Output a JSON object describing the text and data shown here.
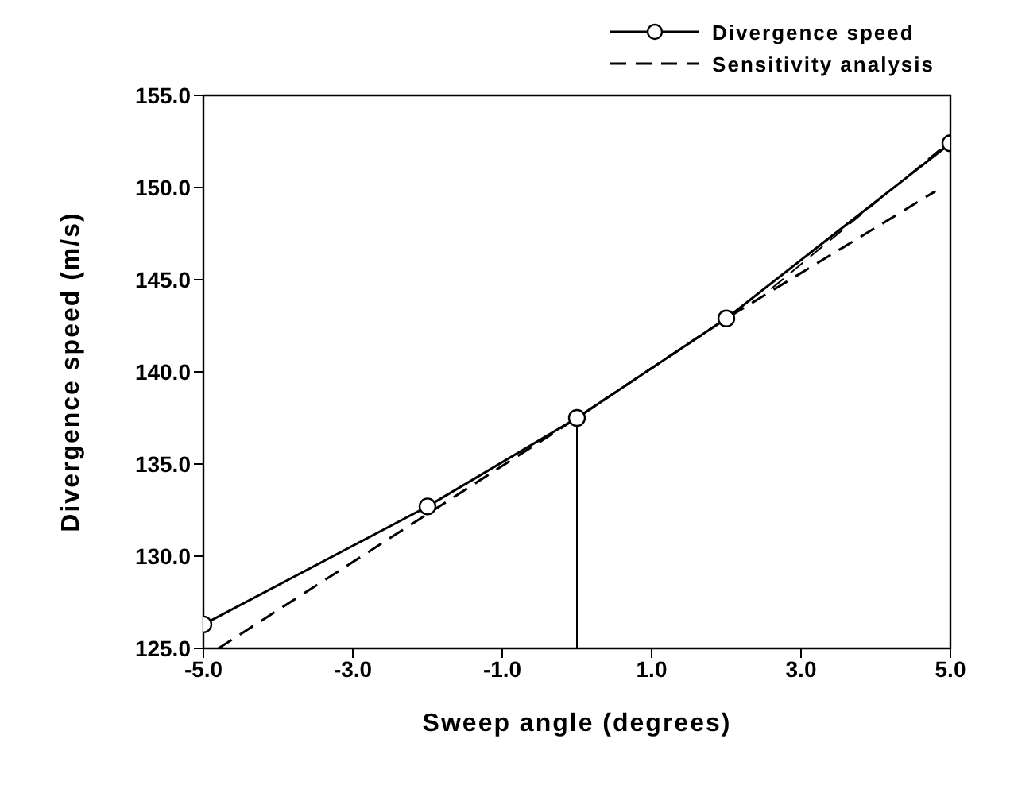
{
  "chart_data": {
    "type": "line",
    "xlabel": "Sweep angle  (degrees)",
    "ylabel": "Divergence speed  (m/s)",
    "xlim": [
      -5,
      5
    ],
    "ylim": [
      125,
      155
    ],
    "xticks": [
      {
        "value": -5,
        "label": "-5.0"
      },
      {
        "value": -3,
        "label": "-3.0"
      },
      {
        "value": -1,
        "label": "-1.0"
      },
      {
        "value": 1,
        "label": "1.0"
      },
      {
        "value": 3,
        "label": "3.0"
      },
      {
        "value": 5,
        "label": "5.0"
      }
    ],
    "yticks": [
      {
        "value": 125,
        "label": "125.0"
      },
      {
        "value": 130,
        "label": "130.0"
      },
      {
        "value": 135,
        "label": "135.0"
      },
      {
        "value": 140,
        "label": "140.0"
      },
      {
        "value": 145,
        "label": "145.0"
      },
      {
        "value": 150,
        "label": "150.0"
      },
      {
        "value": 155,
        "label": "155.0"
      }
    ],
    "grid": false,
    "legend": "top right",
    "series": [
      {
        "name": "Divergence speed",
        "color": "#000000",
        "marker": "circle",
        "line_style": "solid",
        "x": [
          -5,
          -2,
          0,
          2,
          5
        ],
        "values": [
          126.3,
          132.7,
          137.5,
          142.9,
          152.4
        ]
      },
      {
        "name": "Sensitivity analysis",
        "color": "#000000",
        "marker": "none",
        "line_style": "dashed",
        "x": [
          -4.8,
          0,
          2,
          4.8
        ],
        "values": [
          125,
          137.5,
          142.9,
          149.8
        ]
      },
      {
        "color": "#000000",
        "marker": "none",
        "line_style": "dashed",
        "x": [
          2.6,
          4.9
        ],
        "values": [
          144.5,
          152.2
        ]
      },
      {
        "color": "#000000",
        "marker": "none",
        "line_style": "solid",
        "x": [
          0,
          0
        ],
        "values": [
          125,
          137.5
        ]
      }
    ]
  }
}
